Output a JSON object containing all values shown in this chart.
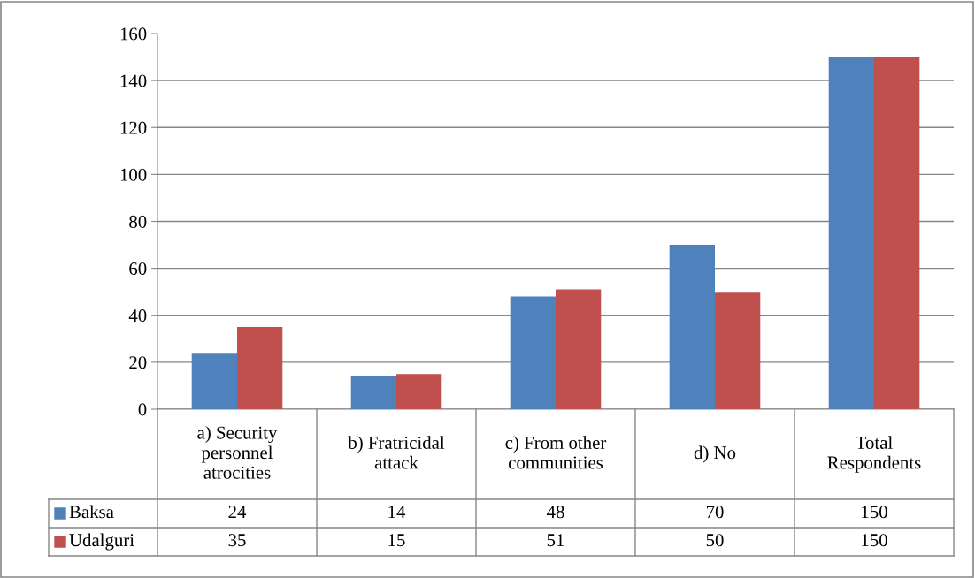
{
  "chart_data": {
    "type": "bar",
    "categories": [
      "a) Security personnel atrocities",
      "b) Fratricidal attack",
      "c) From other communities",
      "d) No",
      "Total Respondents"
    ],
    "series": [
      {
        "name": "Baksa",
        "color": "#4f81bd",
        "values": [
          24,
          14,
          48,
          70,
          150
        ]
      },
      {
        "name": "Udalguri",
        "color": "#c0504d",
        "values": [
          35,
          15,
          51,
          50,
          150
        ]
      }
    ],
    "ylim": [
      0,
      160
    ],
    "yticks": [
      0,
      20,
      40,
      60,
      80,
      100,
      120,
      140,
      160
    ],
    "grid": "y",
    "legend": "bottom",
    "data_labels": true
  }
}
